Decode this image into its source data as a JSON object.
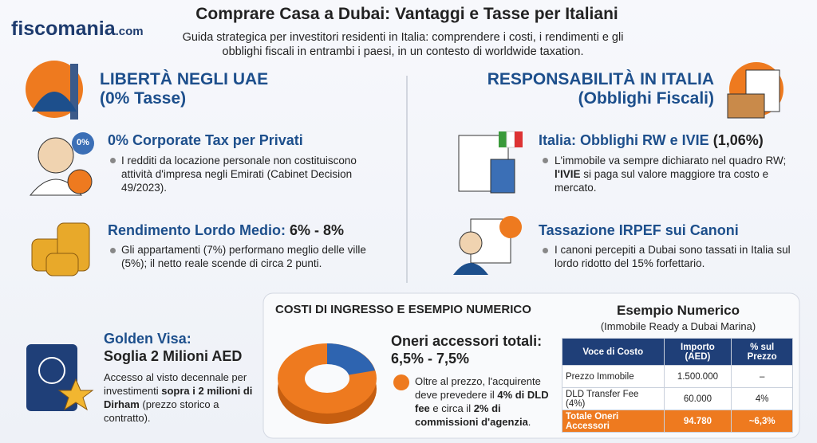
{
  "logo": {
    "name": "fiscomania",
    "suffix": ".com"
  },
  "header": {
    "title": "Comprare Casa a Dubai: Vantaggi e Tasse per Italiani",
    "subtitle": "Guida strategica per investitori residenti in Italia: comprendere i costi, i rendimenti e gli obblighi fiscali in entrambi i paesi, in un contesto di worldwide taxation."
  },
  "left": {
    "heading": [
      "LIBERTÀ NEGLI UAE",
      "(0% Tasse)"
    ],
    "items": [
      {
        "title": [
          "0% Corporate Tax per Privati",
          ""
        ],
        "badge": "0%",
        "text": [
          "I redditi da locazione personale non costituiscono attività d'impresa negli Emirati (Cabinet Decision 49/2023)."
        ]
      },
      {
        "title": [
          "Rendimento Lordo Medio: ",
          "6% - 8%"
        ],
        "text": [
          "Gli appartamenti (7%) performano meglio delle ville (5%); il netto reale scende di circa 2 punti."
        ]
      }
    ]
  },
  "right": {
    "heading": [
      "RESPONSABILITÀ IN ITALIA",
      "(Obblighi Fiscali)"
    ],
    "items": [
      {
        "title": [
          "Italia: Obblighi RW e IVIE ",
          "(1,06%)"
        ],
        "text": [
          "L'immobile va sempre dichiarato nel quadro RW; ",
          "l'IVIE",
          " si paga sul valore maggiore tra costo e mercato."
        ]
      },
      {
        "title": [
          "Tassazione IRPEF sui Canoni",
          ""
        ],
        "text": [
          "I canoni percepiti a Dubai sono tassati in Italia sul lordo ridotto del 15% forfettario."
        ]
      }
    ]
  },
  "golden": {
    "title": [
      "Golden Visa:",
      "Soglia 2 Milioni AED"
    ],
    "text": [
      "Accesso al visto decennale per investimenti ",
      "sopra i 2 milioni di Dirham",
      " (prezzo storico a contratto)."
    ]
  },
  "costs": {
    "heading": "COSTI DI INGRESSO E ESEMPIO NUMERICO",
    "oneri": [
      "Oneri accessori totali:",
      "6,5% - 7,5%"
    ],
    "text": [
      "Oltre al prezzo, l'acquirente deve prevedere il ",
      "4% di DLD fee",
      " e circa il ",
      "2% di commissioni d'agenzia",
      "."
    ]
  },
  "example": {
    "title": "Esempio Numerico",
    "subtitle": "(Immobile Ready a Dubai Marina)",
    "table": {
      "headers": [
        "Voce di Costo",
        "Importo (AED)",
        "% sul Prezzo"
      ],
      "rows": [
        [
          "Prezzo Immobile",
          "1.500.000",
          "–"
        ],
        [
          "DLD Transfer Fee (4%)",
          "60.000",
          "4%"
        ],
        [
          "Totale Oneri Accessori",
          "94.780",
          "~6,3%"
        ]
      ]
    }
  }
}
